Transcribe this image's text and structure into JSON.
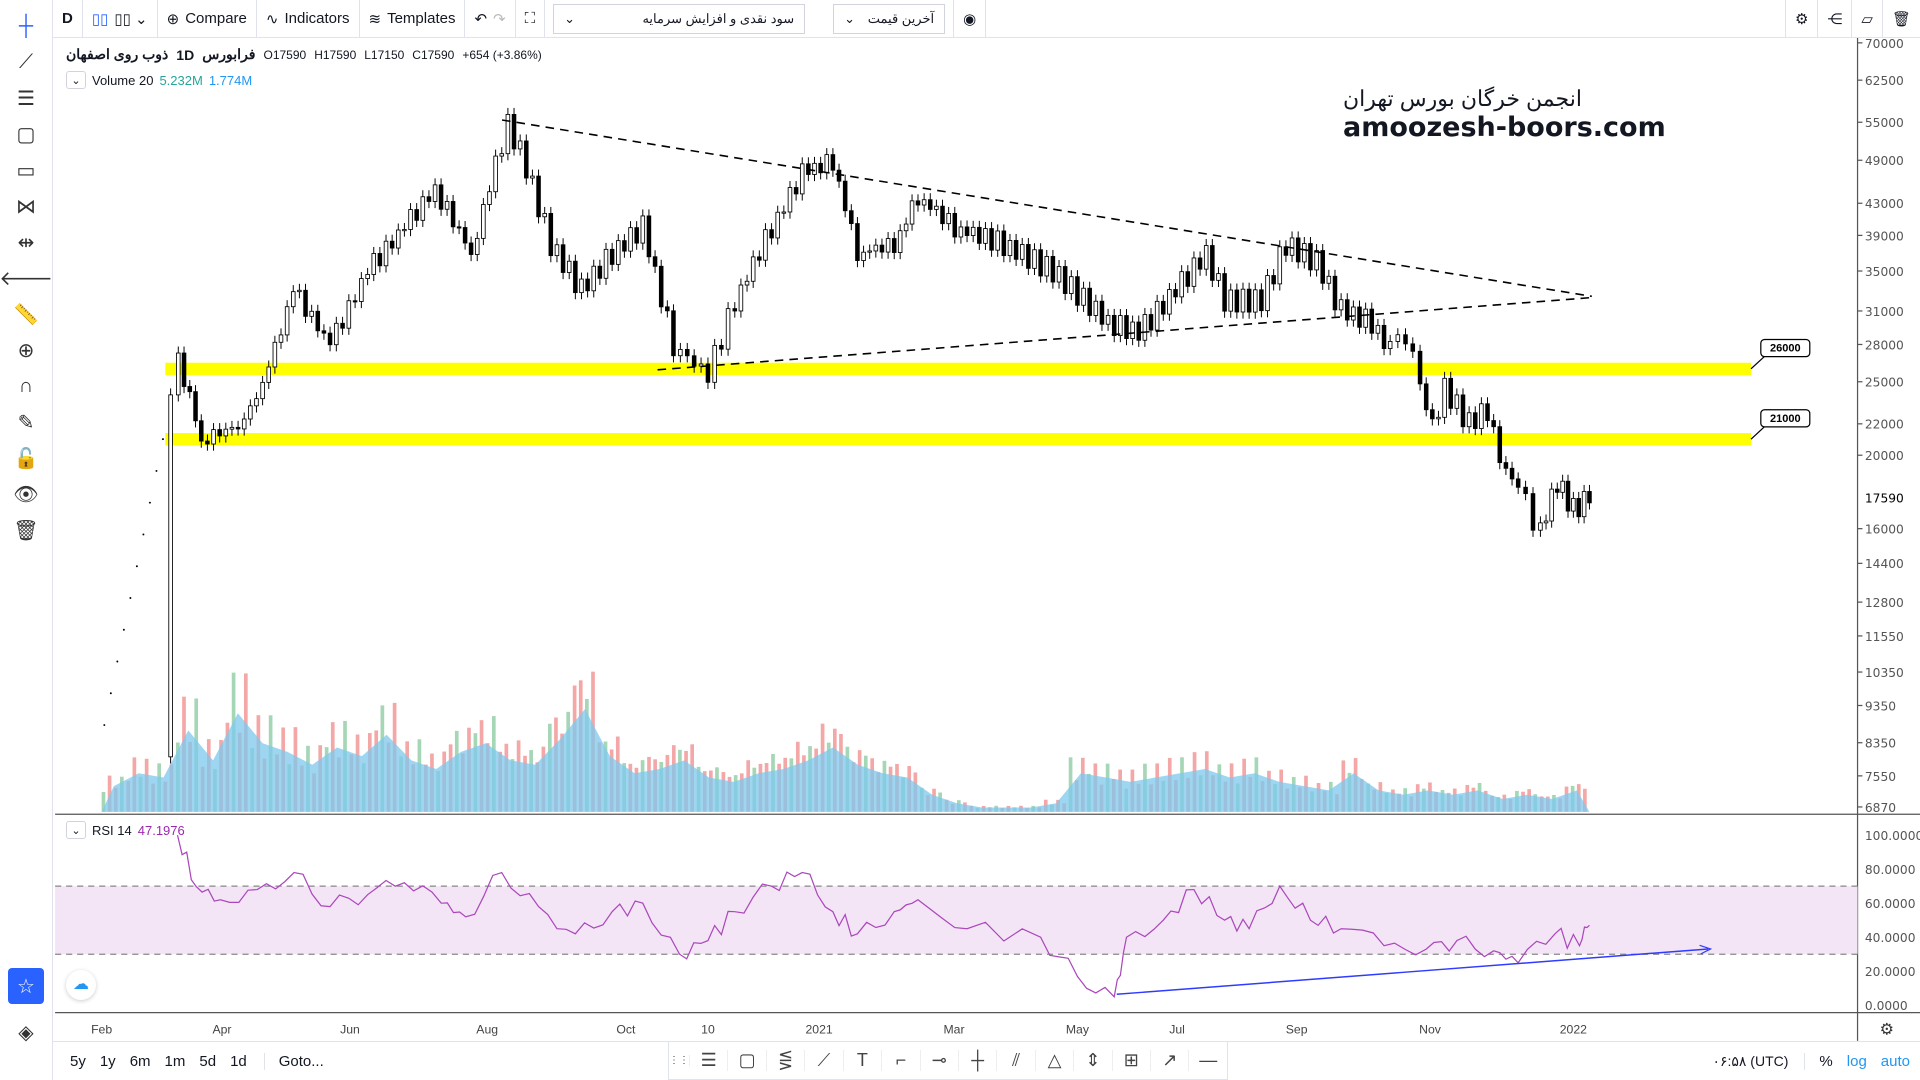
{
  "toolbar": {
    "interval": "D",
    "compare": "Compare",
    "indicators": "Indicators",
    "templates": "Templates",
    "dropdown1": "سود نقدی و افزایش سرمایه",
    "dropdown2": "آخرین قیمت"
  },
  "legend": {
    "symbol": "ذوب روی اصفهان",
    "interval": "1D",
    "exchange": "فرابورس",
    "open": "O17590",
    "high": "H17590",
    "low": "L17150",
    "close": "C17590",
    "change": "+654 (+3.86%)"
  },
  "volume": {
    "label": "Volume 20",
    "v1": "5.232M",
    "v2": "1.774M"
  },
  "rsi": {
    "label": "RSI 14",
    "value": "47.1976"
  },
  "watermark": {
    "line1": "انجمن خرگان بورس تهران",
    "line2": "amoozesh-boors.com"
  },
  "bottom": {
    "ranges": [
      "5y",
      "1y",
      "6m",
      "1m",
      "5d",
      "1d"
    ],
    "goto": "Goto...",
    "time": "۰۶:۵۸ (UTC)",
    "pct": "%",
    "log": "log",
    "auto": "auto"
  },
  "chart_data": {
    "type": "candlestick",
    "scale": "log",
    "price_ticks": [
      70000,
      62500,
      55000,
      49000,
      43000,
      39000,
      35000,
      31000,
      28000,
      25000,
      22000,
      20000,
      16000,
      14400,
      12800,
      11550,
      10350,
      9350,
      8350,
      7550,
      6870
    ],
    "last_price": "17590",
    "time_labels": [
      {
        "t": 0,
        "l": "Feb"
      },
      {
        "t": 1.57,
        "l": "Apr"
      },
      {
        "t": 3.24,
        "l": "Jun"
      },
      {
        "t": 5.03,
        "l": "Aug"
      },
      {
        "t": 6.84,
        "l": "Oct"
      },
      {
        "t": 7.91,
        "l": "10"
      },
      {
        "t": 9.36,
        "l": "2021"
      },
      {
        "t": 11.12,
        "l": "Mar"
      },
      {
        "t": 12.73,
        "l": "May"
      },
      {
        "t": 14.03,
        "l": "Jul"
      },
      {
        "t": 15.59,
        "l": "Sep"
      },
      {
        "t": 17.33,
        "l": "Nov"
      },
      {
        "t": 19.2,
        "l": "2022"
      }
    ],
    "price_path": [
      [
        -0.05,
        8000
      ],
      [
        0.8,
        21000
      ],
      [
        1,
        27000
      ],
      [
        1.3,
        21000
      ],
      [
        1.86,
        22000
      ],
      [
        2.18,
        26000
      ],
      [
        2.5,
        33000
      ],
      [
        2.98,
        28000
      ],
      [
        3.47,
        35000
      ],
      [
        3.95,
        40000
      ],
      [
        4.35,
        45000
      ],
      [
        4.82,
        37000
      ],
      [
        5.06,
        45000
      ],
      [
        5.3,
        55000
      ],
      [
        5.54,
        48000
      ],
      [
        5.86,
        38000
      ],
      [
        6.26,
        33000
      ],
      [
        6.66,
        37000
      ],
      [
        7.06,
        40000
      ],
      [
        7.46,
        28000
      ],
      [
        7.91,
        25500
      ],
      [
        8.26,
        32000
      ],
      [
        8.74,
        40000
      ],
      [
        9.14,
        47000
      ],
      [
        9.54,
        49000
      ],
      [
        9.86,
        37000
      ],
      [
        10.34,
        38000
      ],
      [
        10.65,
        44000
      ],
      [
        11.13,
        40000
      ],
      [
        11.77,
        38000
      ],
      [
        12.41,
        35000
      ],
      [
        13.13,
        30000
      ],
      [
        13.53,
        29000
      ],
      [
        14.01,
        33000
      ],
      [
        14.41,
        37000
      ],
      [
        14.65,
        32000
      ],
      [
        15.13,
        32000
      ],
      [
        15.45,
        38000
      ],
      [
        15.85,
        36000
      ],
      [
        16.17,
        31000
      ],
      [
        16.57,
        30000
      ],
      [
        16.81,
        27500
      ],
      [
        17.01,
        29000
      ],
      [
        17.2,
        25000
      ],
      [
        17.36,
        22000
      ],
      [
        17.52,
        24500
      ],
      [
        17.84,
        22000
      ],
      [
        18.08,
        23000
      ],
      [
        18.24,
        20000
      ],
      [
        18.48,
        18000
      ],
      [
        18.77,
        15800
      ],
      [
        18.99,
        18500
      ],
      [
        19.2,
        17000
      ],
      [
        19.41,
        17590
      ]
    ],
    "volume": [
      0.6,
      0.9,
      0.8,
      1.9,
      1.2,
      2.3,
      1.6,
      1.4,
      1.1,
      1.5,
      1.3,
      1.8,
      1.2,
      1.0,
      1.4,
      1.6,
      1.2,
      1.1,
      1.7,
      2.4,
      1.3,
      0.9,
      1.0,
      1.2,
      0.8,
      0.7,
      0.9,
      1.0,
      1.2,
      1.5,
      1.1,
      0.9,
      0.8,
      0.4,
      0.2,
      0.1,
      0.1,
      0.1,
      0.2,
      0.9,
      0.8,
      0.7,
      0.8,
      0.9,
      1.0,
      0.8,
      0.9,
      0.7,
      0.6,
      0.5,
      0.9,
      0.5,
      0.4,
      0.5,
      0.4,
      0.5,
      0.3,
      0.4,
      0.3,
      0.5
    ],
    "rsi_ticks": [
      "100.0000",
      "80.0000",
      "60.0000",
      "40.0000",
      "20.0000",
      "0.0000"
    ],
    "rsi_band": [
      30,
      70
    ],
    "rsi": [
      [
        0.99,
        100
      ],
      [
        1.23,
        70
      ],
      [
        1.55,
        62
      ],
      [
        2.03,
        68
      ],
      [
        2.51,
        78
      ],
      [
        2.98,
        58
      ],
      [
        3.47,
        65
      ],
      [
        3.95,
        72
      ],
      [
        4.43,
        60
      ],
      [
        4.75,
        52
      ],
      [
        5.22,
        78
      ],
      [
        5.7,
        58
      ],
      [
        6.18,
        42
      ],
      [
        6.66,
        55
      ],
      [
        7.06,
        60
      ],
      [
        7.54,
        30
      ],
      [
        7.91,
        38
      ],
      [
        8.26,
        55
      ],
      [
        8.74,
        70
      ],
      [
        9.14,
        78
      ],
      [
        9.54,
        55
      ],
      [
        9.86,
        42
      ],
      [
        10.34,
        55
      ],
      [
        10.65,
        62
      ],
      [
        11.29,
        45
      ],
      [
        12.25,
        40
      ],
      [
        12.73,
        17
      ],
      [
        13.21,
        5
      ],
      [
        13.37,
        40
      ],
      [
        13.85,
        50
      ],
      [
        14.25,
        68
      ],
      [
        14.65,
        50
      ],
      [
        14.97,
        45
      ],
      [
        15.37,
        70
      ],
      [
        15.77,
        50
      ],
      [
        16.17,
        45
      ],
      [
        16.73,
        35
      ],
      [
        17.28,
        33
      ],
      [
        17.68,
        38
      ],
      [
        18.16,
        32
      ],
      [
        18.48,
        25
      ],
      [
        18.96,
        42
      ],
      [
        19.28,
        35
      ],
      [
        19.41,
        47
      ]
    ],
    "annotations": {
      "levels": [
        {
          "price": 26000,
          "label": "26000"
        },
        {
          "price": 21000,
          "label": "21000"
        }
      ]
    }
  }
}
